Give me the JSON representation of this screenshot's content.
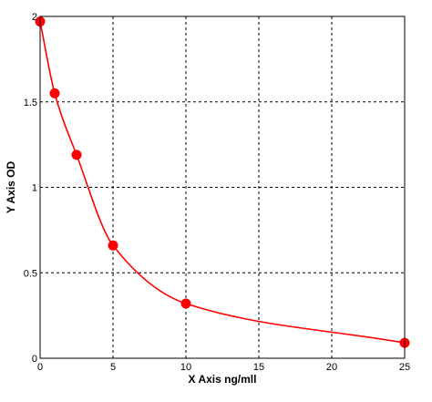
{
  "chart_data": {
    "type": "scatter",
    "title": "",
    "xlabel": "X Axis ng/mll",
    "ylabel": "Y Axis OD",
    "xlim": [
      0,
      25
    ],
    "ylim": [
      0,
      2
    ],
    "x_ticks": [
      0,
      5,
      10,
      15,
      20,
      25
    ],
    "y_ticks": [
      0,
      0.5,
      1,
      1.5,
      2
    ],
    "x_tick_labels": [
      "0",
      "5",
      "10",
      "15",
      "20",
      "25"
    ],
    "y_tick_labels": [
      "0",
      "0.5",
      "1",
      "1.5",
      "2"
    ],
    "grid": true,
    "legend": "none",
    "series": [
      {
        "points": [
          {
            "x": 0,
            "y": 1.97
          },
          {
            "x": 1,
            "y": 1.55
          },
          {
            "x": 2.5,
            "y": 1.19
          },
          {
            "x": 5,
            "y": 0.66
          },
          {
            "x": 10,
            "y": 0.32
          },
          {
            "x": 25,
            "y": 0.09
          }
        ],
        "color": "#ff0000",
        "fit": "smooth-curve"
      }
    ]
  }
}
